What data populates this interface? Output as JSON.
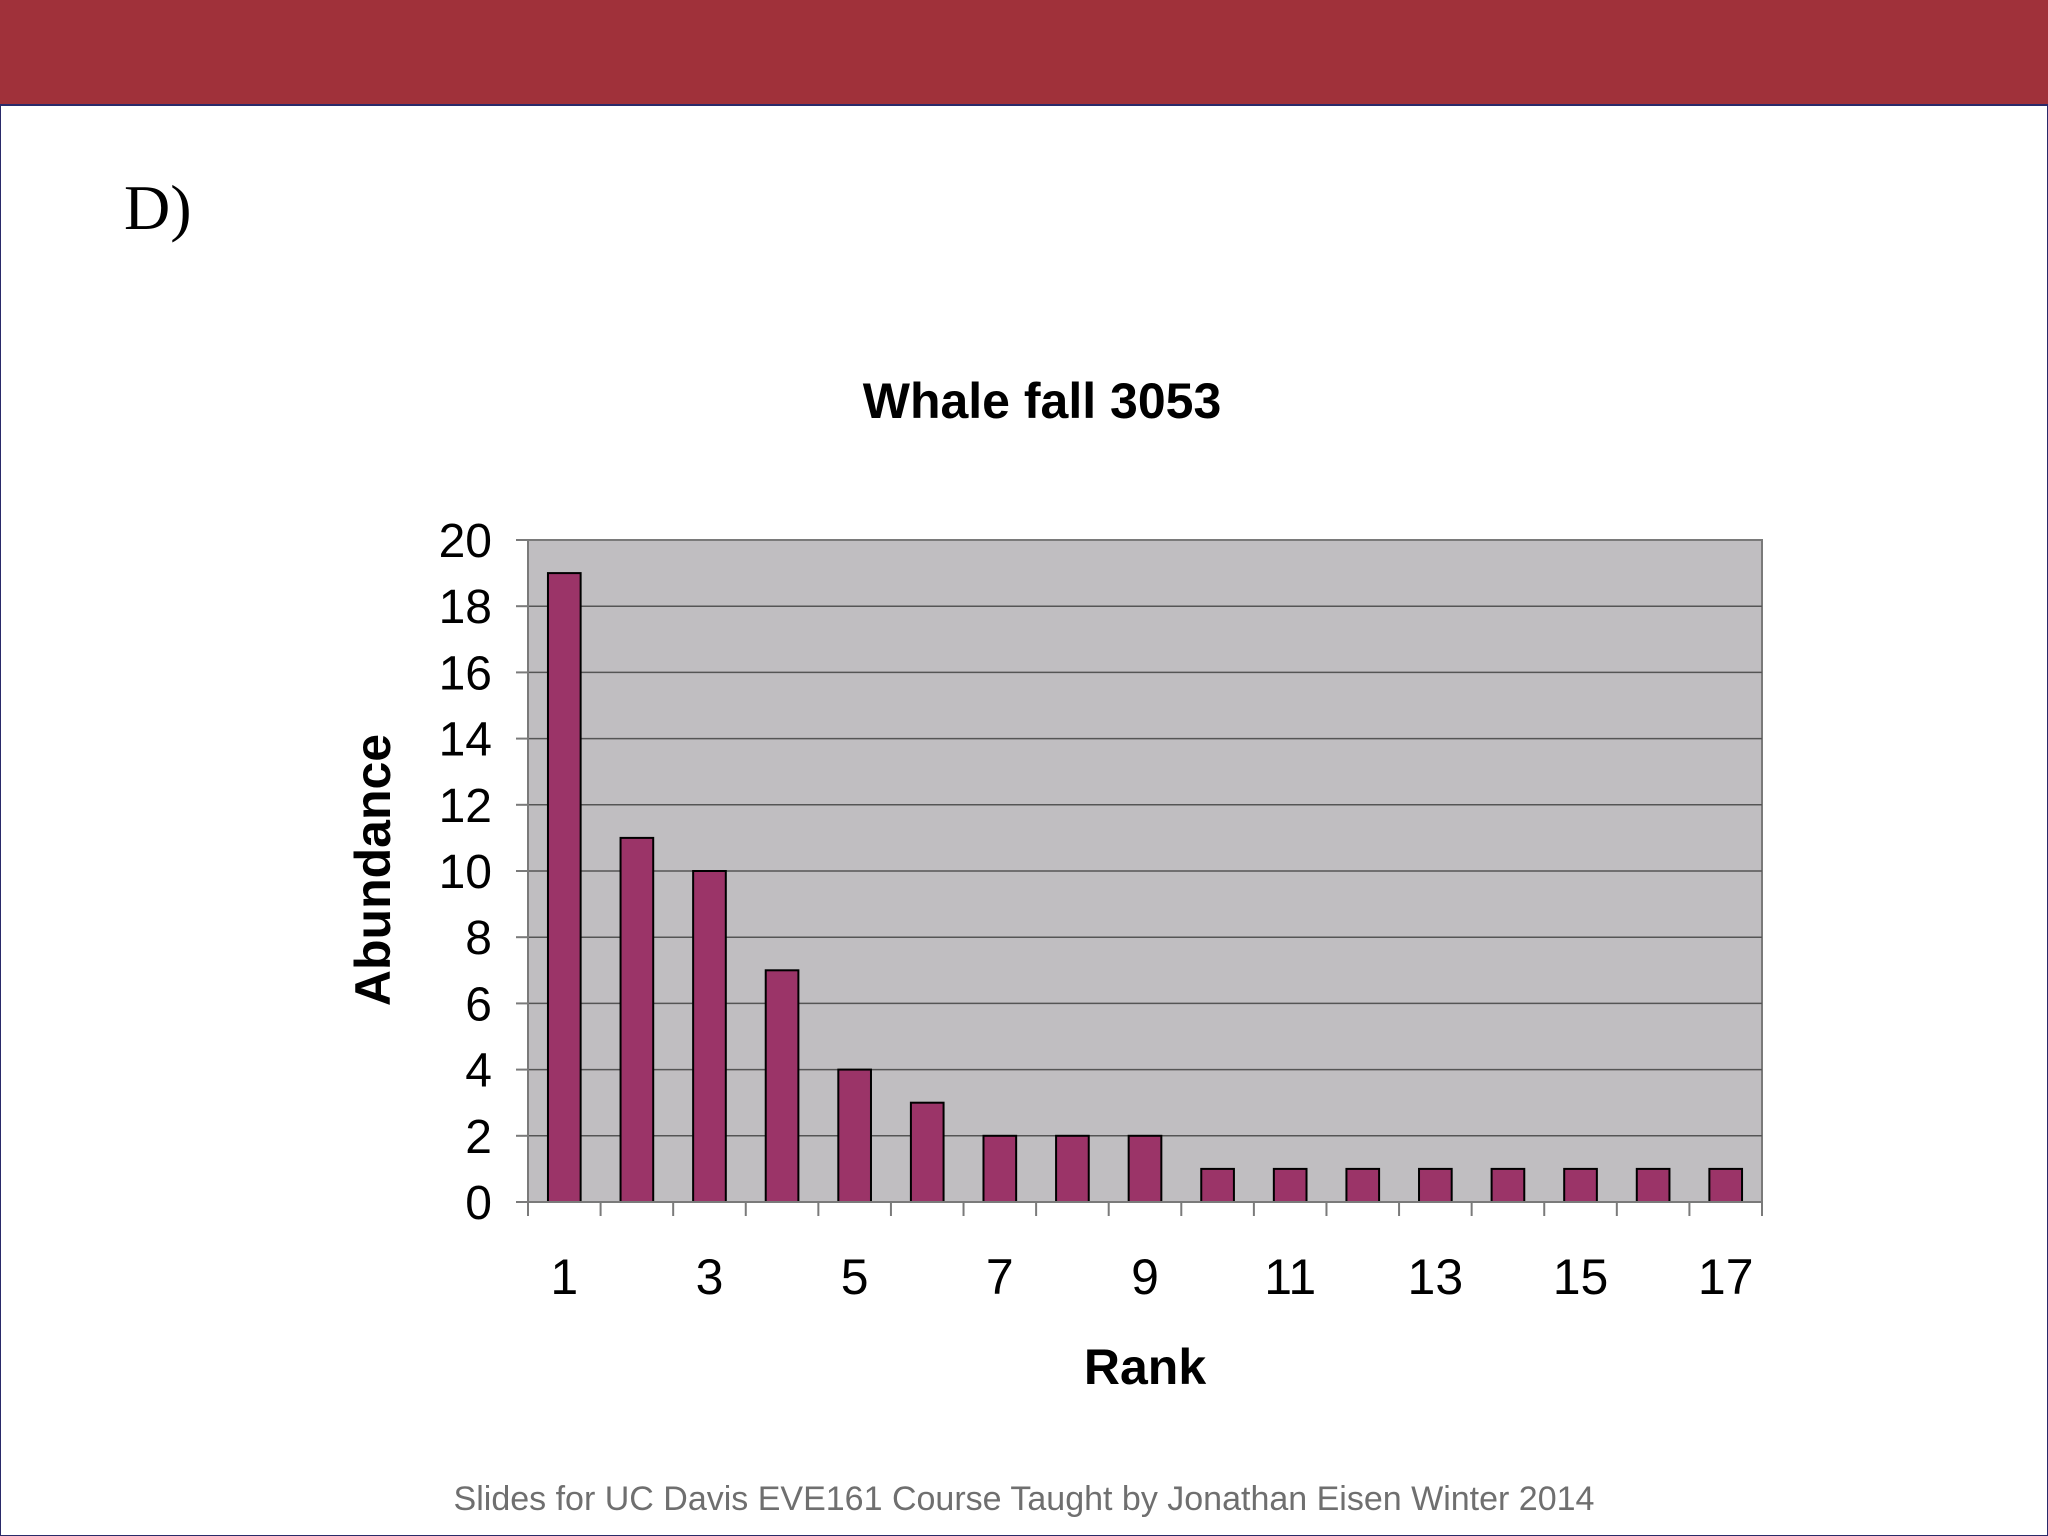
{
  "slide": {
    "label": "D)",
    "footer": "Slides for UC Davis EVE161 Course Taught by Jonathan Eisen Winter 2014",
    "header_color": "#a0313a"
  },
  "chart_data": {
    "type": "bar",
    "title": "Whale fall 3053",
    "xlabel": "Rank",
    "ylabel": "Abundance",
    "categories": [
      1,
      2,
      3,
      4,
      5,
      6,
      7,
      8,
      9,
      10,
      11,
      12,
      13,
      14,
      15,
      16,
      17
    ],
    "x_tick_labels": [
      "1",
      "3",
      "5",
      "7",
      "9",
      "11",
      "13",
      "15",
      "17"
    ],
    "y_ticks": [
      0,
      2,
      4,
      6,
      8,
      10,
      12,
      14,
      16,
      18,
      20
    ],
    "values": [
      19,
      11,
      10,
      7,
      4,
      3,
      2,
      2,
      2,
      1,
      1,
      1,
      1,
      1,
      1,
      1,
      1
    ],
    "ylim": [
      0,
      20
    ],
    "grid": true,
    "legend": false,
    "bar_color": "#9b3468",
    "plot_background": "#c0bec1"
  }
}
